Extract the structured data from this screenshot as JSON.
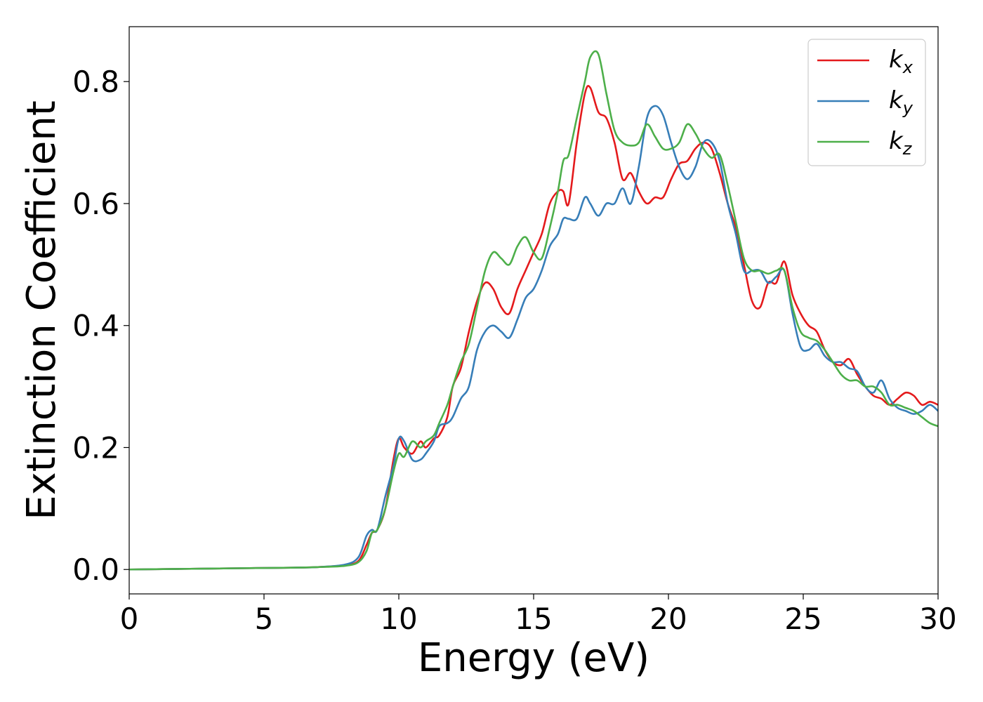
{
  "chart_data": {
    "type": "line",
    "xlabel": "Energy (eV)",
    "ylabel": "Extinction Coefficient",
    "xlim": [
      0,
      30
    ],
    "ylim": [
      -0.04,
      0.89
    ],
    "xticks": [
      0,
      5,
      10,
      15,
      20,
      25,
      30
    ],
    "xtick_labels": [
      "0",
      "5",
      "10",
      "15",
      "20",
      "25",
      "30"
    ],
    "yticks": [
      0.0,
      0.2,
      0.4,
      0.6,
      0.8
    ],
    "ytick_labels": [
      "0.0",
      "0.2",
      "0.4",
      "0.6",
      "0.8"
    ],
    "grid": false,
    "legend_position": "top-right",
    "series": [
      {
        "name": "k",
        "subscript": "x",
        "color": "#e41a1c",
        "x": [
          0,
          2,
          4,
          6,
          7,
          8,
          8.5,
          8.8,
          9.0,
          9.2,
          9.5,
          9.8,
          10.0,
          10.2,
          10.5,
          10.8,
          11.0,
          11.3,
          11.5,
          11.8,
          12.0,
          12.3,
          12.6,
          12.9,
          13.2,
          13.5,
          13.8,
          14.1,
          14.4,
          14.7,
          15.0,
          15.3,
          15.6,
          15.9,
          16.1,
          16.3,
          16.6,
          16.9,
          17.1,
          17.4,
          17.7,
          18.0,
          18.3,
          18.6,
          18.9,
          19.2,
          19.5,
          19.8,
          20.1,
          20.4,
          20.7,
          21.0,
          21.3,
          21.6,
          21.9,
          22.2,
          22.5,
          22.8,
          23.1,
          23.4,
          23.7,
          24.0,
          24.3,
          24.6,
          24.9,
          25.2,
          25.5,
          25.8,
          26.1,
          26.4,
          26.7,
          27.0,
          27.3,
          27.6,
          27.9,
          28.2,
          28.5,
          28.8,
          29.1,
          29.4,
          29.7,
          30.0
        ],
        "y": [
          0.0,
          0.001,
          0.002,
          0.003,
          0.004,
          0.007,
          0.014,
          0.04,
          0.06,
          0.065,
          0.1,
          0.18,
          0.215,
          0.2,
          0.19,
          0.21,
          0.2,
          0.215,
          0.22,
          0.25,
          0.3,
          0.33,
          0.39,
          0.44,
          0.47,
          0.46,
          0.43,
          0.42,
          0.46,
          0.49,
          0.52,
          0.55,
          0.6,
          0.62,
          0.62,
          0.6,
          0.7,
          0.78,
          0.79,
          0.75,
          0.74,
          0.7,
          0.64,
          0.65,
          0.62,
          0.6,
          0.61,
          0.61,
          0.64,
          0.665,
          0.67,
          0.69,
          0.7,
          0.69,
          0.65,
          0.6,
          0.56,
          0.5,
          0.44,
          0.43,
          0.47,
          0.47,
          0.505,
          0.45,
          0.42,
          0.4,
          0.39,
          0.36,
          0.34,
          0.335,
          0.345,
          0.32,
          0.3,
          0.285,
          0.28,
          0.27,
          0.28,
          0.29,
          0.285,
          0.27,
          0.275,
          0.27
        ]
      },
      {
        "name": "k",
        "subscript": "y",
        "color": "#377eb8",
        "x": [
          0,
          2,
          4,
          6,
          7,
          8,
          8.5,
          8.8,
          9.0,
          9.2,
          9.5,
          9.8,
          10.0,
          10.2,
          10.5,
          10.8,
          11.0,
          11.3,
          11.5,
          11.8,
          12.0,
          12.3,
          12.6,
          12.9,
          13.2,
          13.5,
          13.8,
          14.1,
          14.4,
          14.7,
          15.0,
          15.3,
          15.6,
          15.9,
          16.1,
          16.3,
          16.6,
          16.9,
          17.1,
          17.4,
          17.7,
          18.0,
          18.3,
          18.6,
          18.9,
          19.2,
          19.5,
          19.8,
          20.1,
          20.4,
          20.7,
          21.0,
          21.3,
          21.6,
          21.9,
          22.2,
          22.5,
          22.8,
          23.1,
          23.4,
          23.7,
          24.0,
          24.3,
          24.6,
          24.9,
          25.2,
          25.5,
          25.8,
          26.1,
          26.4,
          26.7,
          27.0,
          27.3,
          27.6,
          27.9,
          28.2,
          28.5,
          28.8,
          29.1,
          29.4,
          29.7,
          30.0
        ],
        "y": [
          0.0,
          0.001,
          0.002,
          0.003,
          0.004,
          0.008,
          0.02,
          0.055,
          0.065,
          0.065,
          0.12,
          0.17,
          0.215,
          0.21,
          0.18,
          0.18,
          0.19,
          0.21,
          0.235,
          0.24,
          0.25,
          0.28,
          0.3,
          0.36,
          0.39,
          0.4,
          0.39,
          0.38,
          0.41,
          0.445,
          0.46,
          0.49,
          0.53,
          0.55,
          0.575,
          0.575,
          0.575,
          0.61,
          0.6,
          0.58,
          0.6,
          0.6,
          0.625,
          0.6,
          0.66,
          0.74,
          0.76,
          0.745,
          0.7,
          0.66,
          0.64,
          0.66,
          0.7,
          0.7,
          0.67,
          0.6,
          0.55,
          0.49,
          0.49,
          0.49,
          0.47,
          0.48,
          0.49,
          0.42,
          0.365,
          0.36,
          0.37,
          0.35,
          0.34,
          0.34,
          0.33,
          0.325,
          0.3,
          0.29,
          0.31,
          0.28,
          0.265,
          0.26,
          0.255,
          0.26,
          0.27,
          0.26
        ]
      },
      {
        "name": "k",
        "subscript": "z",
        "color": "#4daf4a",
        "x": [
          0,
          2,
          4,
          6,
          7,
          8,
          8.5,
          8.8,
          9.0,
          9.2,
          9.5,
          9.8,
          10.0,
          10.2,
          10.5,
          10.8,
          11.0,
          11.3,
          11.5,
          11.8,
          12.0,
          12.3,
          12.6,
          12.9,
          13.2,
          13.5,
          13.8,
          14.1,
          14.4,
          14.7,
          15.0,
          15.3,
          15.6,
          15.9,
          16.1,
          16.3,
          16.6,
          16.9,
          17.1,
          17.4,
          17.7,
          18.0,
          18.3,
          18.6,
          18.9,
          19.2,
          19.5,
          19.8,
          20.1,
          20.4,
          20.7,
          21.0,
          21.3,
          21.6,
          21.9,
          22.2,
          22.5,
          22.8,
          23.1,
          23.4,
          23.7,
          24.0,
          24.3,
          24.6,
          24.9,
          25.2,
          25.5,
          25.8,
          26.1,
          26.4,
          26.7,
          27.0,
          27.3,
          27.6,
          27.9,
          28.2,
          28.5,
          28.8,
          29.1,
          29.4,
          29.7,
          30.0
        ],
        "y": [
          0.0,
          0.001,
          0.002,
          0.003,
          0.004,
          0.006,
          0.012,
          0.03,
          0.06,
          0.065,
          0.1,
          0.16,
          0.19,
          0.185,
          0.21,
          0.2,
          0.21,
          0.22,
          0.24,
          0.27,
          0.3,
          0.34,
          0.37,
          0.43,
          0.49,
          0.52,
          0.51,
          0.5,
          0.53,
          0.545,
          0.52,
          0.51,
          0.56,
          0.62,
          0.67,
          0.68,
          0.74,
          0.8,
          0.84,
          0.845,
          0.78,
          0.72,
          0.7,
          0.695,
          0.7,
          0.73,
          0.71,
          0.69,
          0.69,
          0.7,
          0.73,
          0.715,
          0.69,
          0.675,
          0.68,
          0.63,
          0.57,
          0.51,
          0.49,
          0.49,
          0.485,
          0.49,
          0.49,
          0.43,
          0.39,
          0.38,
          0.375,
          0.36,
          0.34,
          0.32,
          0.31,
          0.31,
          0.3,
          0.3,
          0.29,
          0.27,
          0.27,
          0.265,
          0.26,
          0.25,
          0.24,
          0.235
        ]
      }
    ]
  }
}
